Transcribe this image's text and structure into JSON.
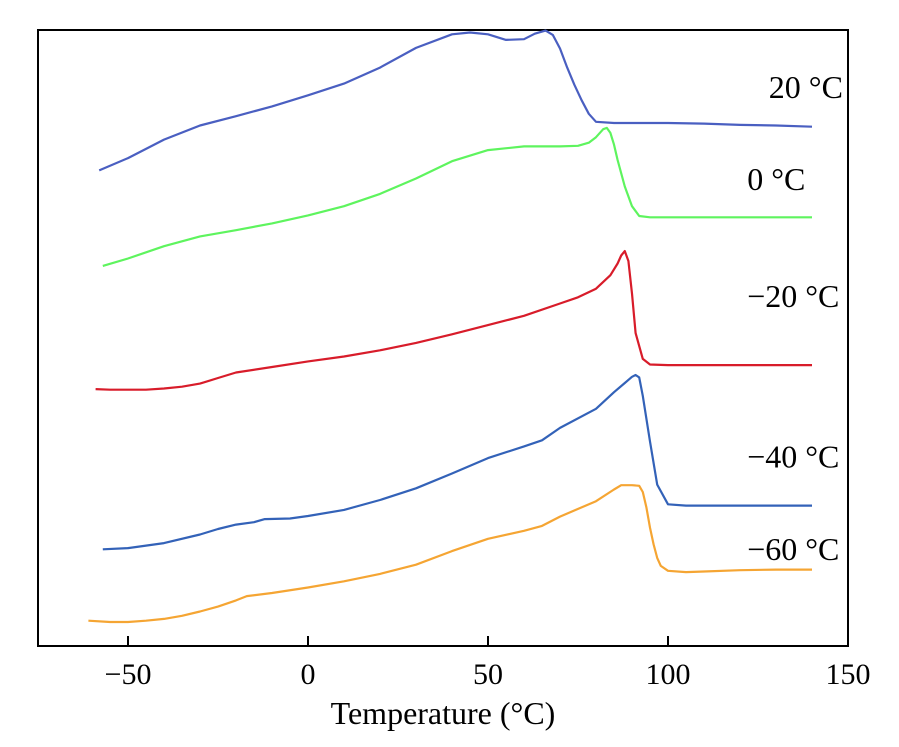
{
  "chart_data": {
    "type": "line",
    "title": "",
    "xlabel": "Temperature (°C)",
    "ylabel": "",
    "xlim": [
      -75,
      150
    ],
    "ylim": [
      0,
      100
    ],
    "x_ticks": [
      -50,
      0,
      50,
      100,
      150
    ],
    "x_tick_labels": [
      "−50",
      "0",
      "50",
      "100",
      "150"
    ],
    "y_ticks_shown": false,
    "series": [
      {
        "name": "20 °C",
        "label": "20 °C",
        "color": "#4a5fc1",
        "x": [
          -58,
          -50,
          -40,
          -30,
          -20,
          -10,
          0,
          10,
          20,
          30,
          40,
          45,
          50,
          55,
          60,
          63,
          66,
          68,
          70,
          72,
          74,
          76,
          78,
          80,
          85,
          90,
          100,
          110,
          120,
          130,
          140
        ],
        "y": [
          77.2,
          79.2,
          82.2,
          84.5,
          86.0,
          87.6,
          89.4,
          91.3,
          93.9,
          97.1,
          99.3,
          99.6,
          99.3,
          98.4,
          98.5,
          99.4,
          99.9,
          99.2,
          97.0,
          93.9,
          91.1,
          88.6,
          86.4,
          85.1,
          84.9,
          84.9,
          84.9,
          84.8,
          84.6,
          84.5,
          84.3
        ],
        "label_x": 128,
        "label_y": 89
      },
      {
        "name": "0 °C",
        "label": "0 °C",
        "color": "#5ef45e",
        "x": [
          -57,
          -50,
          -40,
          -30,
          -20,
          -10,
          0,
          10,
          20,
          30,
          40,
          50,
          60,
          70,
          75,
          78,
          80,
          82,
          83,
          84,
          85,
          86,
          88,
          90,
          92,
          95,
          100,
          110,
          120,
          130,
          140
        ],
        "y": [
          61.7,
          62.9,
          64.9,
          66.5,
          67.5,
          68.6,
          69.9,
          71.4,
          73.4,
          75.9,
          78.7,
          80.5,
          81.1,
          81.1,
          81.2,
          81.7,
          82.6,
          83.9,
          84.1,
          83.3,
          81.4,
          78.9,
          74.6,
          71.4,
          69.8,
          69.6,
          69.6,
          69.6,
          69.6,
          69.6,
          69.6
        ],
        "label_x": 122,
        "label_y": 74
      },
      {
        "name": "−20 °C",
        "label": "−20 °C",
        "color": "#d81c2a",
        "x": [
          -59,
          -55,
          -50,
          -45,
          -40,
          -35,
          -30,
          -25,
          -20,
          -10,
          0,
          10,
          20,
          30,
          40,
          50,
          60,
          70,
          75,
          80,
          84,
          86,
          87,
          88,
          89,
          90,
          91,
          93,
          95,
          100,
          110,
          120,
          130,
          140
        ],
        "y": [
          41.7,
          41.6,
          41.6,
          41.6,
          41.8,
          42.1,
          42.6,
          43.5,
          44.4,
          45.3,
          46.2,
          47.0,
          48.0,
          49.2,
          50.6,
          52.1,
          53.6,
          55.6,
          56.6,
          58.0,
          60.2,
          62.1,
          63.4,
          64.1,
          62.5,
          57.2,
          50.8,
          46.6,
          45.7,
          45.6,
          45.6,
          45.6,
          45.6,
          45.6
        ],
        "label_x": 122,
        "label_y": 55
      },
      {
        "name": "−40 °C",
        "label": "−40 °C",
        "color": "#3362b8",
        "x": [
          -57,
          -50,
          -40,
          -30,
          -25,
          -20,
          -15,
          -12,
          -5,
          0,
          10,
          20,
          30,
          40,
          50,
          60,
          65,
          70,
          80,
          85,
          88,
          90,
          91,
          92,
          93,
          95,
          97,
          100,
          105,
          110,
          120,
          130,
          140
        ],
        "y": [
          15.7,
          15.9,
          16.7,
          18.1,
          19.0,
          19.7,
          20.1,
          20.6,
          20.7,
          21.1,
          22.1,
          23.7,
          25.6,
          28.0,
          30.5,
          32.4,
          33.4,
          35.4,
          38.5,
          41.2,
          42.7,
          43.7,
          44.0,
          43.6,
          40.6,
          33.2,
          26.2,
          23.0,
          22.8,
          22.8,
          22.8,
          22.8,
          22.8
        ],
        "label_x": 122,
        "label_y": 29
      },
      {
        "name": "−60 °C",
        "label": "−60 °C",
        "color": "#f5a533",
        "x": [
          -61,
          -55,
          -50,
          -45,
          -40,
          -35,
          -30,
          -25,
          -20,
          -17,
          -10,
          0,
          10,
          20,
          30,
          40,
          50,
          60,
          65,
          70,
          80,
          85,
          87,
          90,
          92,
          93,
          94,
          95,
          96,
          97,
          98,
          100,
          105,
          110,
          120,
          130,
          140
        ],
        "y": [
          4.1,
          3.9,
          3.9,
          4.1,
          4.4,
          4.9,
          5.6,
          6.4,
          7.4,
          8.1,
          8.6,
          9.5,
          10.5,
          11.7,
          13.2,
          15.4,
          17.4,
          18.7,
          19.5,
          21.0,
          23.5,
          25.4,
          26.1,
          26.1,
          26.0,
          25.0,
          22.5,
          19.2,
          16.5,
          14.3,
          13.0,
          12.2,
          12.0,
          12.1,
          12.3,
          12.4,
          12.4
        ],
        "label_x": 122,
        "label_y": 14
      }
    ]
  }
}
